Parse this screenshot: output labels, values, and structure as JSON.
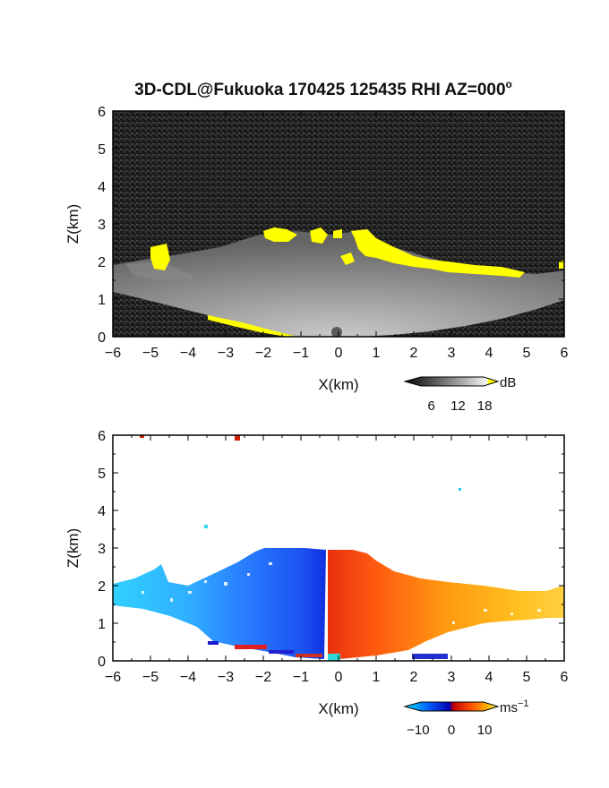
{
  "title": "3D-CDL@Fukuoka 170425 125435 RHI AZ=000",
  "title_degree": "o",
  "chart_data": [
    {
      "type": "heatmap",
      "panel": "reflectivity",
      "xlabel": "X(km)",
      "ylabel": "Z(km)",
      "xlim": [
        -6,
        6
      ],
      "ylim": [
        0,
        6
      ],
      "x_ticks": [
        -6,
        -5,
        -4,
        -3,
        -2,
        -1,
        0,
        1,
        2,
        3,
        4,
        5,
        6
      ],
      "y_ticks": [
        0,
        1,
        2,
        3,
        4,
        5,
        6
      ],
      "colorbar": {
        "unit": "dB",
        "tick_labels": [
          "6",
          "12",
          "18"
        ],
        "range": [
          0,
          21
        ],
        "colors": [
          "#101010",
          "#8a8a8a",
          "#f2f2f2",
          "#ffff00"
        ]
      },
      "features": {
        "cloud_top_km": 2.9,
        "cloud_base_km": 0.0,
        "saturated_color": "#ffff00",
        "saturated_layer": [
          [
            -4.9,
            1.9
          ],
          [
            -4.7,
            2.2
          ],
          [
            -2.0,
            2.7
          ],
          [
            -1.5,
            2.8
          ],
          [
            -0.6,
            2.7
          ],
          [
            0.5,
            2.7
          ],
          [
            1.0,
            2.3
          ],
          [
            2.0,
            2.1
          ],
          [
            3.0,
            1.9
          ],
          [
            4.0,
            1.8
          ],
          [
            5.0,
            1.75
          ],
          [
            6.0,
            2.0
          ]
        ],
        "ground_echo": [
          [
            -3.4,
            0.5
          ],
          [
            -2.0,
            0.2
          ],
          [
            -1.0,
            0.0
          ]
        ]
      }
    },
    {
      "type": "heatmap",
      "panel": "doppler velocity",
      "xlabel": "X(km)",
      "ylabel": "Z(km)",
      "xlim": [
        -6,
        6
      ],
      "ylim": [
        0,
        6
      ],
      "x_ticks": [
        -6,
        -5,
        -4,
        -3,
        -2,
        -1,
        0,
        1,
        2,
        3,
        4,
        5,
        6
      ],
      "y_ticks": [
        0,
        1,
        2,
        3,
        4,
        5,
        6
      ],
      "colorbar": {
        "unit": "ms",
        "unit_exponent": "−1",
        "tick_labels": [
          "−10",
          "0",
          "10"
        ],
        "range": [
          -14,
          14
        ],
        "colors": [
          "#00e5ff",
          "#0050ff",
          "#0000c8",
          "#d00000",
          "#ff4000",
          "#ffa000",
          "#ffff40"
        ]
      },
      "features": {
        "velocity_zero_line_km": -0.3,
        "left_velocity_ms": -8,
        "right_velocity_ms": 8,
        "echo_top_km": 2.9,
        "echo_extent_km": [
          -6,
          6
        ]
      }
    }
  ]
}
